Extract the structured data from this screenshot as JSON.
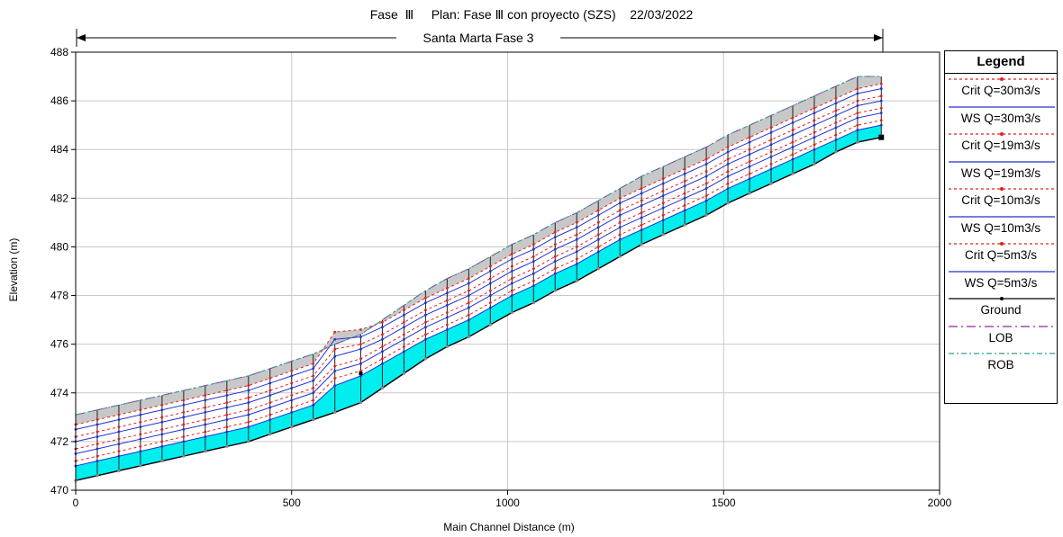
{
  "header": {
    "title": "Fase  Ⅲ     Plan: Fase Ⅲ con proyecto (SZS)    22/03/2022"
  },
  "reach": {
    "label": "Santa Marta Fase 3"
  },
  "legend": {
    "title": "Legend",
    "items": [
      {
        "label": "Crit  Q=30m3/s",
        "color": "#e02020",
        "dash": "3,3",
        "marker": "dot"
      },
      {
        "label": "WS  Q=30m3/s",
        "color": "#2233cc",
        "dash": "",
        "marker": "none"
      },
      {
        "label": "Crit  Q=19m3/s",
        "color": "#e02020",
        "dash": "3,3",
        "marker": "dot"
      },
      {
        "label": "WS  Q=19m3/s",
        "color": "#2233cc",
        "dash": "",
        "marker": "none"
      },
      {
        "label": "Crit  Q=10m3/s",
        "color": "#e02020",
        "dash": "3,3",
        "marker": "dot"
      },
      {
        "label": "WS  Q=10m3/s",
        "color": "#2233cc",
        "dash": "",
        "marker": "none"
      },
      {
        "label": "Crit  Q=5m3/s",
        "color": "#e02020",
        "dash": "3,3",
        "marker": "dot"
      },
      {
        "label": "WS  Q=5m3/s",
        "color": "#2233cc",
        "dash": "",
        "marker": "none"
      },
      {
        "label": "Ground",
        "color": "#000000",
        "dash": "",
        "marker": "dot"
      },
      {
        "label": "LOB",
        "color": "#9922aa",
        "dash": "10,4,2,4",
        "marker": "none"
      },
      {
        "label": "ROB",
        "color": "#2aa090",
        "dash": "6,3,2,3",
        "marker": "none"
      }
    ]
  },
  "chart_data": {
    "type": "line",
    "title": "Fase  Ⅲ     Plan: Fase Ⅲ con proyecto (SZS)    22/03/2022",
    "xlabel": "Main Channel Distance (m)",
    "ylabel": "Elevation (m)",
    "xlim": [
      0,
      2000
    ],
    "ylim": [
      470,
      488
    ],
    "x_ticks": [
      0,
      500,
      1000,
      1500,
      2000
    ],
    "y_ticks": [
      470,
      472,
      474,
      476,
      478,
      480,
      482,
      484,
      486,
      488
    ],
    "grid": true,
    "legend_position": "right",
    "colors": {
      "water_fill": "#00eeee",
      "bank_fill": "#c8c8c8",
      "ws_line": "#2233cc",
      "crit_line": "#e02020",
      "ground": "#000000"
    },
    "stations": [
      0,
      50,
      100,
      150,
      200,
      250,
      300,
      350,
      400,
      450,
      500,
      550,
      600,
      660,
      710,
      760,
      810,
      860,
      910,
      960,
      1010,
      1060,
      1110,
      1160,
      1210,
      1260,
      1310,
      1360,
      1410,
      1460,
      1510,
      1560,
      1610,
      1660,
      1710,
      1760,
      1810,
      1865
    ],
    "series": [
      {
        "name": "Ground",
        "values": [
          470.4,
          470.6,
          470.8,
          471.0,
          471.2,
          471.4,
          471.6,
          471.8,
          472.0,
          472.3,
          472.6,
          472.9,
          473.2,
          473.6,
          474.2,
          474.8,
          475.4,
          475.9,
          476.3,
          476.8,
          477.3,
          477.7,
          478.2,
          478.6,
          479.1,
          479.6,
          480.1,
          480.5,
          480.9,
          481.3,
          481.8,
          482.2,
          482.6,
          483.0,
          483.4,
          483.9,
          484.3,
          484.5
        ]
      },
      {
        "name": "WS  Q=5m3/s",
        "values": [
          471.0,
          471.2,
          471.4,
          471.6,
          471.8,
          472.0,
          472.2,
          472.4,
          472.6,
          472.9,
          473.2,
          473.5,
          474.3,
          474.7,
          475.2,
          475.7,
          476.2,
          476.6,
          477.0,
          477.5,
          478.0,
          478.4,
          478.9,
          479.3,
          479.8,
          480.3,
          480.7,
          481.1,
          481.5,
          481.9,
          482.4,
          482.8,
          483.2,
          483.6,
          484.0,
          484.4,
          484.8,
          485.0
        ]
      },
      {
        "name": "Crit  Q=5m3/s",
        "values": [
          471.2,
          471.4,
          471.6,
          471.8,
          472.0,
          472.2,
          472.4,
          472.6,
          472.8,
          473.1,
          473.4,
          473.7,
          474.6,
          474.9,
          475.4,
          475.9,
          476.4,
          476.8,
          477.2,
          477.7,
          478.2,
          478.6,
          479.1,
          479.5,
          480.0,
          480.5,
          480.9,
          481.3,
          481.7,
          482.1,
          482.6,
          483.0,
          483.4,
          483.8,
          484.2,
          484.6,
          485.0,
          485.2
        ]
      },
      {
        "name": "WS  Q=10m3/s",
        "values": [
          471.5,
          471.7,
          471.9,
          472.1,
          472.3,
          472.5,
          472.7,
          472.9,
          473.1,
          473.4,
          473.7,
          474.0,
          474.9,
          475.2,
          475.7,
          476.2,
          476.7,
          477.1,
          477.5,
          478.0,
          478.5,
          478.9,
          479.4,
          479.8,
          480.3,
          480.8,
          481.2,
          481.6,
          482.0,
          482.4,
          482.9,
          483.3,
          483.7,
          484.1,
          484.5,
          484.9,
          485.3,
          485.5
        ]
      },
      {
        "name": "Crit  Q=10m3/s",
        "values": [
          471.7,
          471.9,
          472.1,
          472.3,
          472.5,
          472.7,
          472.9,
          473.1,
          473.3,
          473.6,
          473.9,
          474.2,
          475.1,
          475.4,
          475.9,
          476.4,
          476.9,
          477.3,
          477.7,
          478.2,
          478.7,
          479.1,
          479.6,
          480.0,
          480.5,
          481.0,
          481.4,
          481.8,
          482.2,
          482.6,
          483.1,
          483.5,
          483.9,
          484.3,
          484.7,
          485.1,
          485.5,
          485.7
        ]
      },
      {
        "name": "WS  Q=19m3/s",
        "values": [
          472.0,
          472.2,
          472.4,
          472.6,
          472.8,
          473.0,
          473.2,
          473.4,
          473.6,
          473.9,
          474.2,
          474.5,
          475.5,
          475.8,
          476.2,
          476.7,
          477.2,
          477.6,
          478.0,
          478.5,
          479.0,
          479.4,
          479.9,
          480.3,
          480.8,
          481.3,
          481.7,
          482.1,
          482.5,
          482.9,
          483.4,
          483.8,
          484.2,
          484.6,
          485.0,
          485.4,
          485.8,
          486.0
        ]
      },
      {
        "name": "Crit  Q=19m3/s",
        "values": [
          472.2,
          472.4,
          472.6,
          472.8,
          473.0,
          473.2,
          473.4,
          473.6,
          473.8,
          474.1,
          474.4,
          474.7,
          475.8,
          476.0,
          476.4,
          476.9,
          477.4,
          477.8,
          478.2,
          478.7,
          479.2,
          479.6,
          480.1,
          480.5,
          481.0,
          481.5,
          481.9,
          482.3,
          482.7,
          483.1,
          483.6,
          484.0,
          484.4,
          484.8,
          485.2,
          485.6,
          486.0,
          486.2
        ]
      },
      {
        "name": "WS  Q=30m3/s",
        "values": [
          472.5,
          472.7,
          472.9,
          473.1,
          473.3,
          473.5,
          473.7,
          473.9,
          474.1,
          474.4,
          474.7,
          475.0,
          476.2,
          476.3,
          476.7,
          477.2,
          477.7,
          478.1,
          478.5,
          479.0,
          479.5,
          479.9,
          480.4,
          480.8,
          481.3,
          481.8,
          482.2,
          482.6,
          483.0,
          483.4,
          483.9,
          484.3,
          484.7,
          485.1,
          485.5,
          485.9,
          486.3,
          486.5
        ]
      },
      {
        "name": "Crit  Q=30m3/s",
        "values": [
          472.7,
          472.9,
          473.1,
          473.3,
          473.5,
          473.7,
          473.9,
          474.1,
          474.3,
          474.6,
          474.9,
          475.2,
          476.5,
          476.6,
          476.9,
          477.4,
          477.9,
          478.3,
          478.7,
          479.2,
          479.7,
          480.1,
          480.6,
          481.0,
          481.5,
          482.0,
          482.4,
          482.8,
          483.2,
          483.6,
          484.1,
          484.5,
          484.9,
          485.3,
          485.7,
          486.1,
          486.5,
          486.7
        ]
      },
      {
        "name": "LOB",
        "values": [
          473.1,
          473.3,
          473.5,
          473.7,
          473.9,
          474.1,
          474.3,
          474.5,
          474.7,
          475.0,
          475.3,
          475.6,
          476.0,
          476.4,
          477.0,
          477.6,
          478.2,
          478.7,
          479.1,
          479.6,
          480.1,
          480.5,
          481.0,
          481.4,
          481.9,
          482.4,
          482.9,
          483.3,
          483.7,
          484.1,
          484.6,
          485.0,
          485.4,
          485.8,
          486.2,
          486.6,
          487.0,
          487.0
        ]
      },
      {
        "name": "ROB",
        "values": [
          473.1,
          473.3,
          473.5,
          473.7,
          473.9,
          474.1,
          474.3,
          474.5,
          474.7,
          475.0,
          475.3,
          475.6,
          476.0,
          476.4,
          477.0,
          477.6,
          478.2,
          478.7,
          479.1,
          479.6,
          480.1,
          480.5,
          481.0,
          481.4,
          481.9,
          482.4,
          482.9,
          483.3,
          483.7,
          484.1,
          484.6,
          485.0,
          485.4,
          485.8,
          486.2,
          486.6,
          487.0,
          487.0
        ]
      }
    ]
  }
}
